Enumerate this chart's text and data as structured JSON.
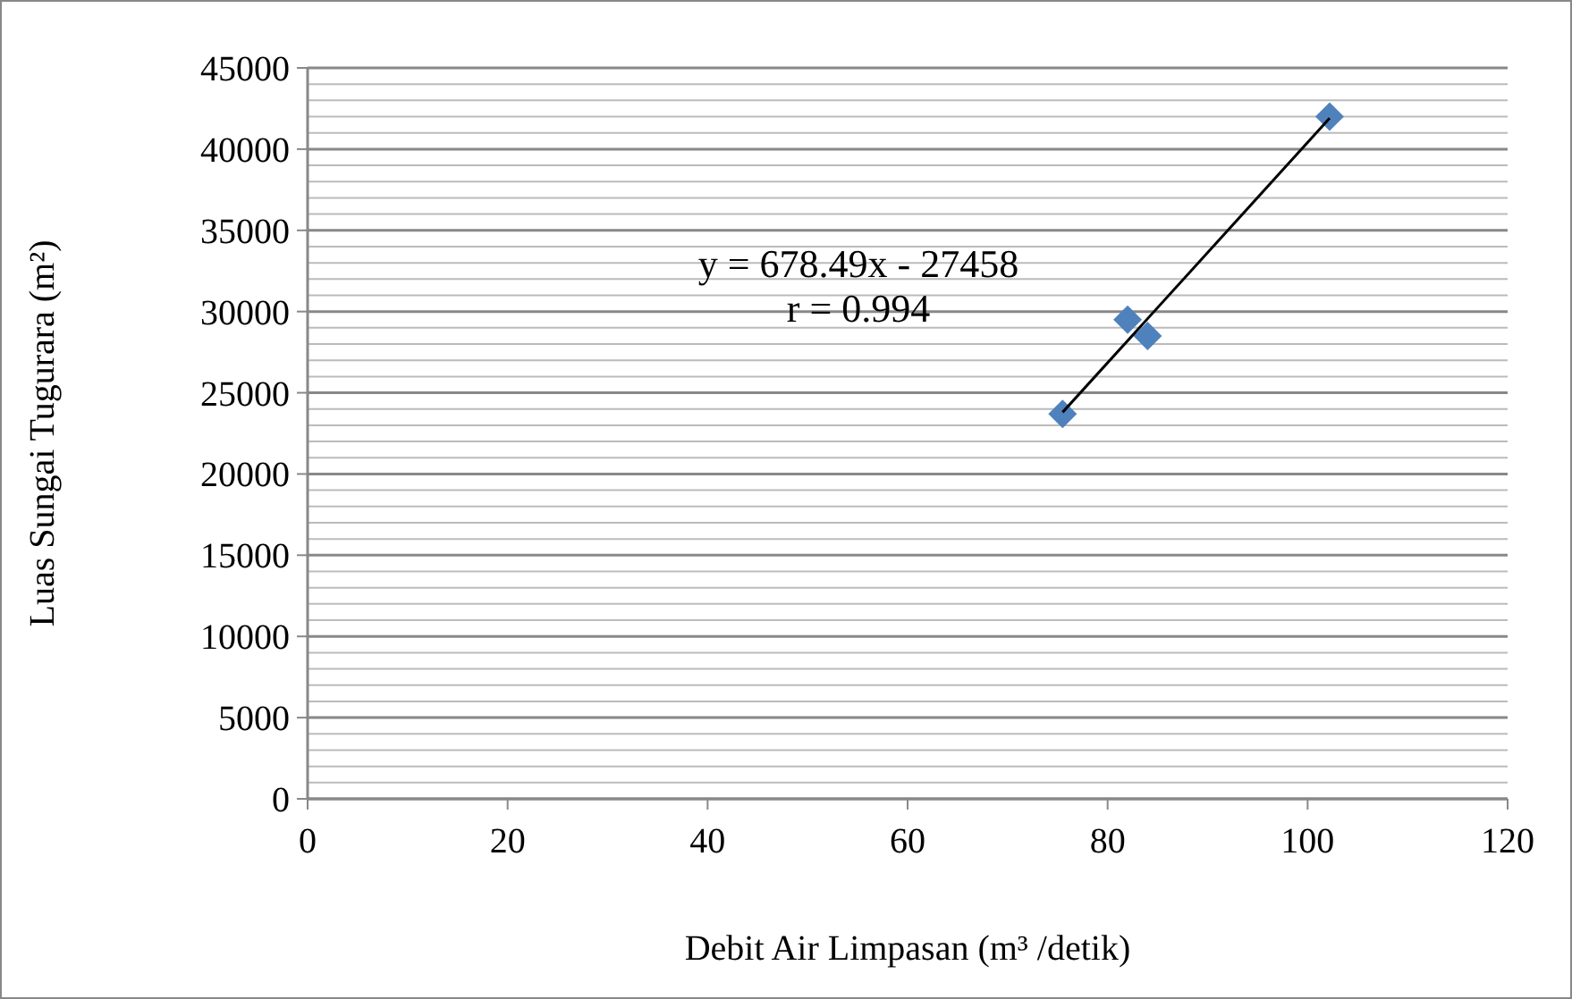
{
  "chart_data": {
    "type": "scatter",
    "xlabel": "Debit Air Limpasan (m³ /detik)",
    "ylabel": "Luas Sungai Tugurara (m²)",
    "xlim": [
      0,
      120
    ],
    "xticks": [
      0,
      20,
      40,
      60,
      80,
      100,
      120
    ],
    "ylim": [
      0,
      45000
    ],
    "yticks": [
      0,
      {
        "value": 1000,
        "label": null
      },
      {
        "value": 2000,
        "label": null
      },
      {
        "value": 3000,
        "label": null
      },
      {
        "value": 4000,
        "label": null
      },
      5000,
      {
        "value": 6000,
        "label": null
      },
      {
        "value": 7000,
        "label": null
      },
      {
        "value": 8000,
        "label": null
      },
      {
        "value": 9000,
        "label": null
      },
      10000,
      {
        "value": 11000,
        "label": null
      },
      {
        "value": 12000,
        "label": null
      },
      {
        "value": 13000,
        "label": null
      },
      {
        "value": 14000,
        "label": null
      },
      15000,
      {
        "value": 16000,
        "label": null
      },
      {
        "value": 17000,
        "label": null
      },
      {
        "value": 18000,
        "label": null
      },
      {
        "value": 19000,
        "label": null
      },
      20000,
      {
        "value": 21000,
        "label": null
      },
      {
        "value": 22000,
        "label": null
      },
      {
        "value": 23000,
        "label": null
      },
      {
        "value": 24000,
        "label": null
      },
      25000,
      {
        "value": 26000,
        "label": null
      },
      {
        "value": 27000,
        "label": null
      },
      {
        "value": 28000,
        "label": null
      },
      {
        "value": 29000,
        "label": null
      },
      30000,
      {
        "value": 31000,
        "label": null
      },
      {
        "value": 32000,
        "label": null
      },
      {
        "value": 33000,
        "label": null
      },
      {
        "value": 34000,
        "label": null
      },
      35000,
      {
        "value": 36000,
        "label": null
      },
      {
        "value": 37000,
        "label": null
      },
      {
        "value": 38000,
        "label": null
      },
      {
        "value": 39000,
        "label": null
      },
      40000,
      {
        "value": 41000,
        "label": null
      },
      {
        "value": 42000,
        "label": null
      },
      {
        "value": 43000,
        "label": null
      },
      {
        "value": 44000,
        "label": null
      },
      45000
    ],
    "grid": "y",
    "series": [
      {
        "marker": "diamond",
        "color": "#4f81bd",
        "x": [
          75.5,
          82,
          84,
          102.2
        ],
        "values": [
          23700,
          29500,
          28500,
          42000
        ]
      },
      {
        "type": "line",
        "color": "#000000",
        "x": [
          75.5,
          102.2
        ],
        "values": [
          23800,
          41900
        ]
      }
    ],
    "annotations": [
      "y = 678.49x - 27458",
      "r = 0.994"
    ]
  }
}
